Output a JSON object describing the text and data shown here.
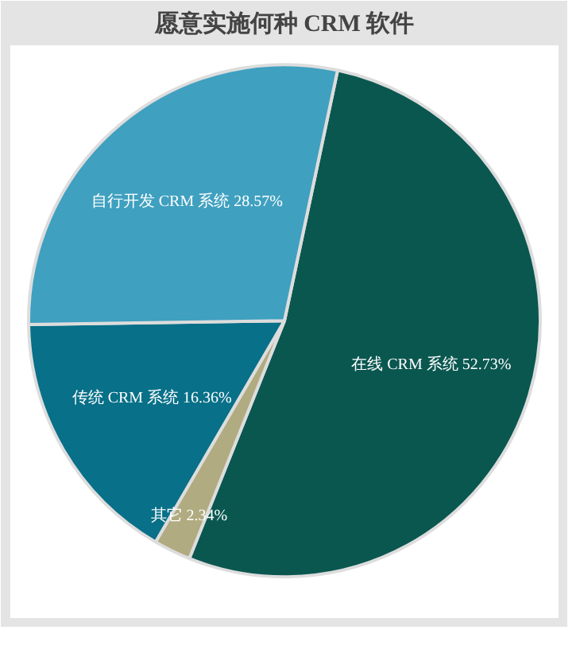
{
  "chart_data": {
    "type": "pie",
    "title": "愿意实施何种 CRM 软件",
    "categories": [
      "在线 CRM 系统",
      "其它",
      "传统 CRM 系统",
      "自行开发 CRM 系统"
    ],
    "values": [
      52.73,
      2.34,
      16.36,
      28.57
    ],
    "value_labels": [
      "52.73%",
      "2.34%",
      "16.36%",
      "28.57%"
    ],
    "colors": [
      "#0a5750",
      "#b0ab80",
      "#087088",
      "#3fa0c0"
    ]
  }
}
